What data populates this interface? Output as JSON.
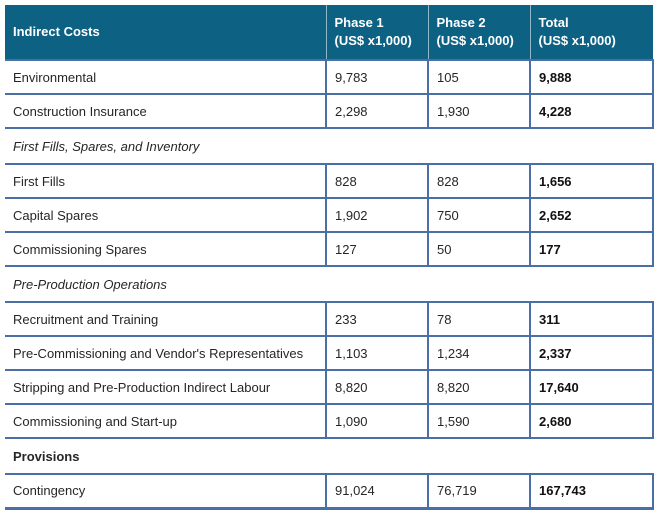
{
  "table": {
    "colors": {
      "header_bg": "#0d6284",
      "border": "#4a6fa5",
      "header_text": "#ffffff",
      "body_text": "#262626",
      "total_text": "#111111"
    },
    "columns": [
      {
        "label": "Indirect Costs",
        "sublabel": ""
      },
      {
        "label": "Phase 1",
        "sublabel": "(US$ x1,000)"
      },
      {
        "label": "Phase 2",
        "sublabel": "(US$ x1,000)"
      },
      {
        "label": "Total",
        "sublabel": "(US$ x1,000)"
      }
    ],
    "rows": [
      {
        "type": "data",
        "label": "Environmental",
        "phase1": "9,783",
        "phase2": "105",
        "total": "9,888"
      },
      {
        "type": "data",
        "label": "Construction Insurance",
        "phase1": "2,298",
        "phase2": "1,930",
        "total": "4,228"
      },
      {
        "type": "section",
        "style": "italic",
        "label": "First Fills, Spares, and Inventory"
      },
      {
        "type": "data",
        "label": "First Fills",
        "phase1": "828",
        "phase2": "828",
        "total": "1,656"
      },
      {
        "type": "data",
        "label": "Capital Spares",
        "phase1": "1,902",
        "phase2": "750",
        "total": "2,652"
      },
      {
        "type": "data",
        "label": "Commissioning Spares",
        "phase1": "127",
        "phase2": "50",
        "total": "177"
      },
      {
        "type": "section",
        "style": "italic",
        "label": "Pre-Production Operations"
      },
      {
        "type": "data",
        "label": "Recruitment and Training",
        "phase1": "233",
        "phase2": "78",
        "total": "311"
      },
      {
        "type": "data",
        "label": "Pre-Commissioning and Vendor's Representatives",
        "phase1": "1,103",
        "phase2": "1,234",
        "total": "2,337"
      },
      {
        "type": "data",
        "label": "Stripping and Pre-Production Indirect Labour",
        "phase1": "8,820",
        "phase2": "8,820",
        "total": "17,640"
      },
      {
        "type": "data",
        "label": "Commissioning and Start-up",
        "phase1": "1,090",
        "phase2": "1,590",
        "total": "2,680"
      },
      {
        "type": "section",
        "style": "bold",
        "label": "Provisions"
      },
      {
        "type": "data",
        "label": "Contingency",
        "phase1": "91,024",
        "phase2": "76,719",
        "total": "167,743"
      }
    ]
  }
}
